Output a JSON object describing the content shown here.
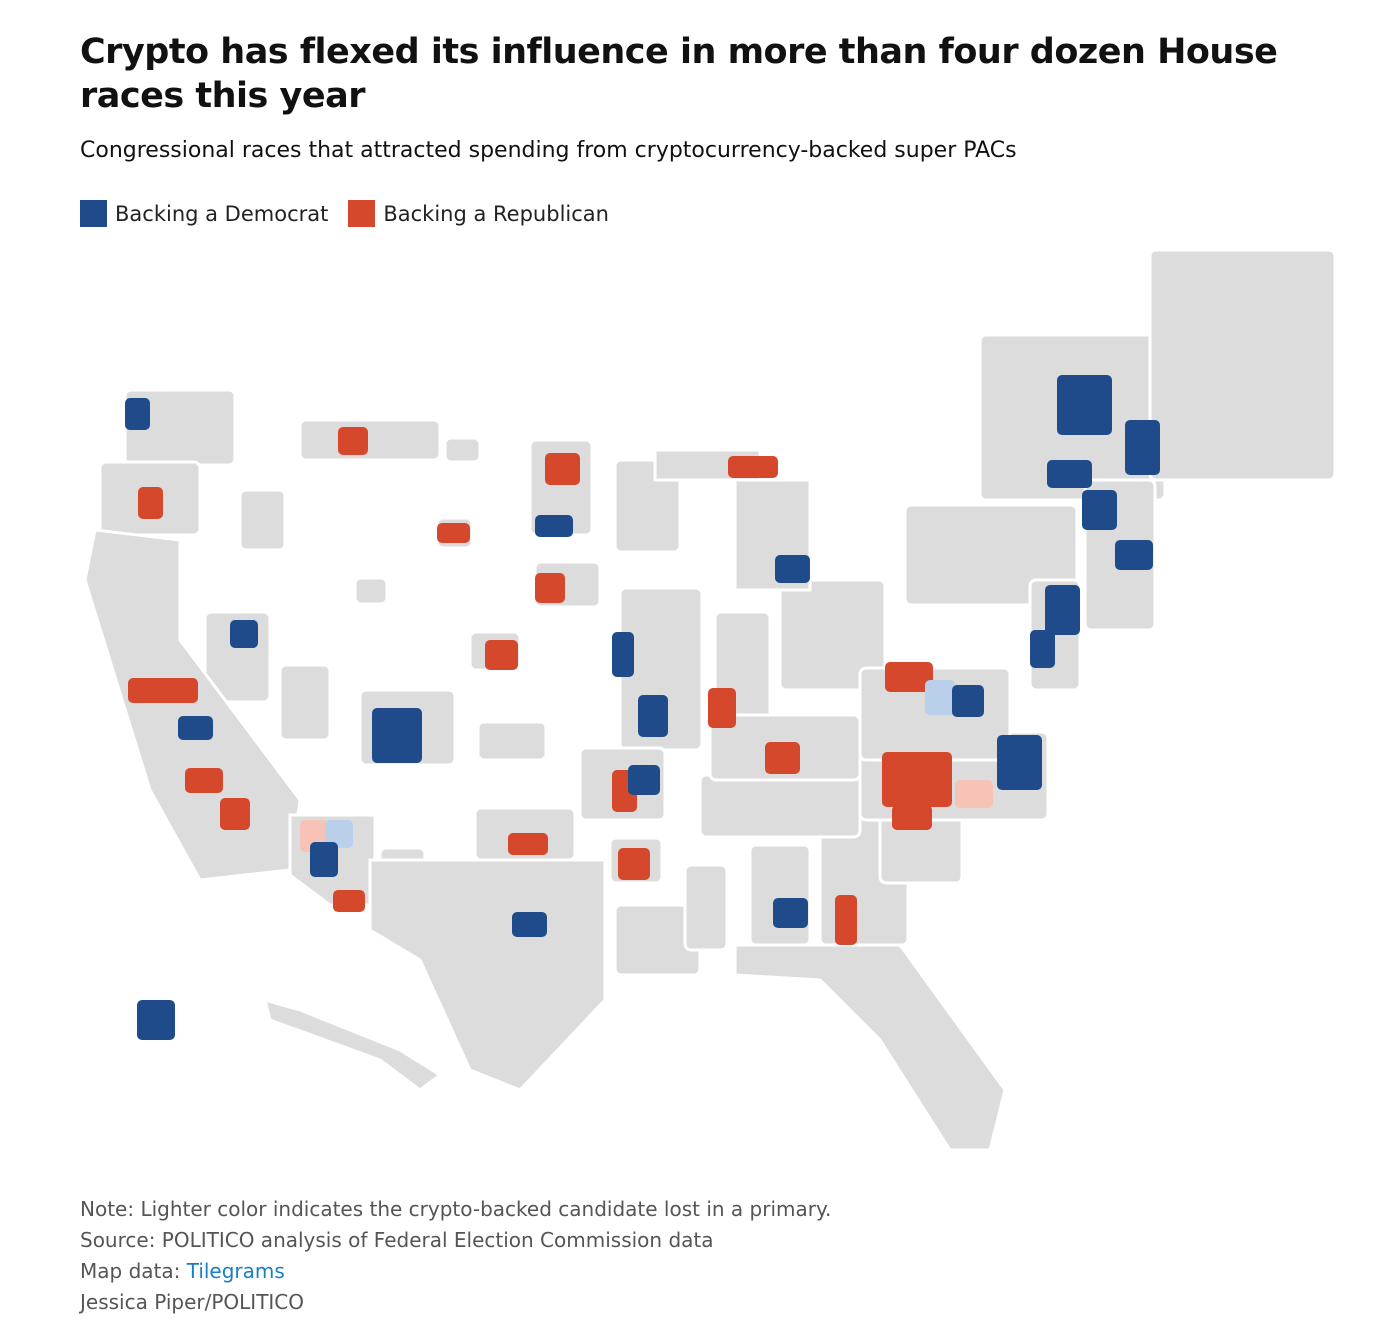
{
  "title": "Crypto has flexed its influence in more than four dozen House races this year",
  "subtitle": "Congressional races that attracted spending from cryptocurrency-backed super PACs",
  "legend": [
    {
      "label": "Backing a Democrat",
      "color": "#1f4b8a"
    },
    {
      "label": "Backing a Republican",
      "color": "#d6482c"
    }
  ],
  "notes": {
    "note": "Note: Lighter color indicates the crypto-backed candidate lost in a primary.",
    "source": "Source: POLITICO analysis of Federal Election Commission data",
    "map_data_prefix": "Map data:",
    "map_data_link": "Tilegrams",
    "credit": "Jessica Piper/POLITICO"
  }
}
